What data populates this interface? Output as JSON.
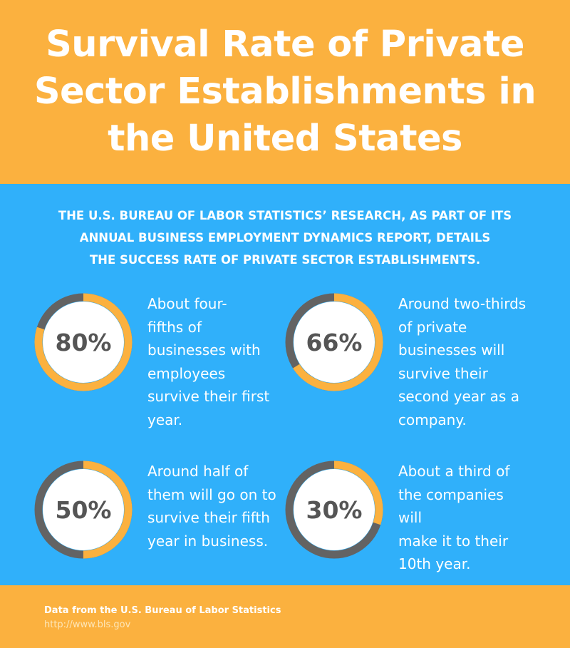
{
  "header": {
    "title_lines": [
      "Survival Rate of Private",
      "Sector Establishments in",
      "the United States"
    ]
  },
  "intro": {
    "lines": [
      "THE U.S. BUREAU OF LABOR STATISTICS’ RESEARCH, AS PART OF ITS",
      "ANNUAL BUSINESS EMPLOYMENT DYNAMICS REPORT, DETAILS",
      "THE SUCCESS RATE OF PRIVATE SECTOR ESTABLISHMENTS."
    ]
  },
  "colors": {
    "orange": "#fbb13f",
    "blue": "#30b0fa",
    "ring_track": "#636363",
    "text_dark": "#555555"
  },
  "chart_data": {
    "type": "donut",
    "items": [
      {
        "label": "80%",
        "value": 80,
        "description": [
          "About four-",
          "fifths of",
          "businesses with",
          "employees",
          "survive their first",
          "year."
        ]
      },
      {
        "label": "66%",
        "value": 66,
        "description": [
          "Around two-thirds",
          "of private",
          "businesses will",
          "survive their",
          "second year as a",
          "company."
        ]
      },
      {
        "label": "50%",
        "value": 50,
        "description": [
          "Around half of",
          "them will go on to",
          "survive their fifth",
          "year in business."
        ]
      },
      {
        "label": "30%",
        "value": 30,
        "description": [
          "About a third of",
          "the companies will",
          "make it to their",
          "10th year."
        ]
      }
    ]
  },
  "footer": {
    "source": "Data from the U.S. Bureau of Labor Statistics",
    "url": "http://www.bls.gov"
  }
}
